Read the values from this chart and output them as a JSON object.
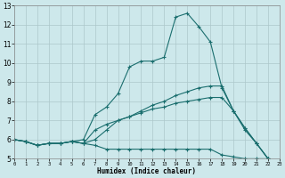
{
  "xlabel": "Humidex (Indice chaleur)",
  "xlim": [
    0,
    23
  ],
  "ylim": [
    5,
    13
  ],
  "xticks": [
    0,
    1,
    2,
    3,
    4,
    5,
    6,
    7,
    8,
    9,
    10,
    11,
    12,
    13,
    14,
    15,
    16,
    17,
    18,
    19,
    20,
    21,
    22,
    23
  ],
  "yticks": [
    5,
    6,
    7,
    8,
    9,
    10,
    11,
    12,
    13
  ],
  "background_color": "#cde8eb",
  "grid_color": "#adc8cb",
  "line_color": "#1a6e6e",
  "lines": [
    {
      "x": [
        0,
        1,
        2,
        3,
        4,
        5,
        6,
        7,
        8,
        9,
        10,
        11,
        12,
        13,
        14,
        15,
        16,
        17,
        18,
        19,
        20,
        21,
        22
      ],
      "y": [
        6.0,
        5.9,
        5.7,
        5.8,
        5.8,
        5.9,
        6.0,
        7.3,
        7.7,
        8.4,
        9.8,
        10.1,
        10.1,
        10.3,
        12.4,
        12.6,
        11.9,
        11.1,
        8.7,
        7.5,
        6.6,
        5.8,
        5.0
      ]
    },
    {
      "x": [
        0,
        1,
        2,
        3,
        4,
        5,
        6,
        7,
        8,
        9,
        10,
        11,
        12,
        13,
        14,
        15,
        16,
        17,
        18,
        19,
        20,
        21,
        22
      ],
      "y": [
        6.0,
        5.9,
        5.7,
        5.8,
        5.8,
        5.9,
        5.8,
        6.0,
        6.5,
        7.0,
        7.2,
        7.5,
        7.8,
        8.0,
        8.3,
        8.5,
        8.7,
        8.8,
        8.8,
        7.5,
        6.6,
        5.8,
        5.0
      ]
    },
    {
      "x": [
        0,
        1,
        2,
        3,
        4,
        5,
        6,
        7,
        8,
        9,
        10,
        11,
        12,
        13,
        14,
        15,
        16,
        17,
        18,
        19,
        20,
        21,
        22
      ],
      "y": [
        6.0,
        5.9,
        5.7,
        5.8,
        5.8,
        5.9,
        5.8,
        6.5,
        6.8,
        7.0,
        7.2,
        7.4,
        7.6,
        7.7,
        7.9,
        8.0,
        8.1,
        8.2,
        8.2,
        7.5,
        6.5,
        5.8,
        5.0
      ]
    },
    {
      "x": [
        0,
        1,
        2,
        3,
        4,
        5,
        6,
        7,
        8,
        9,
        10,
        11,
        12,
        13,
        14,
        15,
        16,
        17,
        18,
        19,
        20,
        21,
        22
      ],
      "y": [
        6.0,
        5.9,
        5.7,
        5.8,
        5.8,
        5.9,
        5.8,
        5.7,
        5.5,
        5.5,
        5.5,
        5.5,
        5.5,
        5.5,
        5.5,
        5.5,
        5.5,
        5.5,
        5.2,
        5.1,
        5.0,
        5.0,
        5.0
      ]
    }
  ]
}
